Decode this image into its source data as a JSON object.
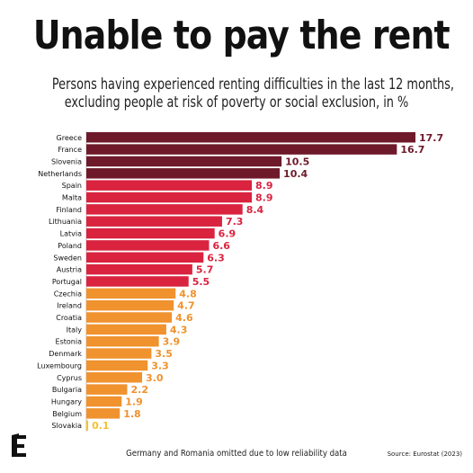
{
  "header": {
    "title": "Unable to pay the rent",
    "subtitle_line1": "Persons having experienced renting difficulties in the last 12 months,",
    "subtitle_line2": "excluding people at risk of poverty or social exclusion, in %"
  },
  "footer": {
    "note": "Germany and Romania omitted due to low reliability data",
    "source": "Source: Eurostat (2023)"
  },
  "colors": {
    "tier1": "#6e1a2b",
    "tier2": "#d9233f",
    "tier3": "#f0922e",
    "tier4": "#f5c230"
  },
  "chart_data": {
    "type": "bar",
    "orientation": "horizontal",
    "categories": [
      "Greece",
      "France",
      "Slovenia",
      "Netherlands",
      "Spain",
      "Malta",
      "Finland",
      "Lithuania",
      "Latvia",
      "Poland",
      "Sweden",
      "Austria",
      "Portugal",
      "Czechia",
      "Ireland",
      "Croatia",
      "Italy",
      "Estonia",
      "Denmark",
      "Luxembourg",
      "Cyprus",
      "Bulgaria",
      "Hungary",
      "Belgium",
      "Slovakia"
    ],
    "values": [
      17.7,
      16.7,
      10.5,
      10.4,
      8.9,
      8.9,
      8.4,
      7.3,
      6.9,
      6.6,
      6.3,
      5.7,
      5.5,
      4.8,
      4.7,
      4.6,
      4.3,
      3.9,
      3.5,
      3.3,
      3.0,
      2.2,
      1.9,
      1.8,
      0.1
    ],
    "labels": [
      "17.7",
      "16.7",
      "10.5",
      "10.4",
      "8.9",
      "8.9",
      "8.4",
      "7.3",
      "6.9",
      "6.6",
      "6.3",
      "5.7",
      "5.5",
      "4.8",
      "4.7",
      "4.6",
      "4.3",
      "3.9",
      "3.5",
      "3.3",
      "3.0",
      "2.2",
      "1.9",
      "1.8",
      "0.1"
    ],
    "tiers": [
      1,
      1,
      1,
      1,
      2,
      2,
      2,
      2,
      2,
      2,
      2,
      2,
      2,
      3,
      3,
      3,
      3,
      3,
      3,
      3,
      3,
      3,
      3,
      3,
      4
    ],
    "title": "Unable to pay the rent",
    "xlabel": "",
    "ylabel": "",
    "xlim": [
      0,
      17.7
    ]
  }
}
